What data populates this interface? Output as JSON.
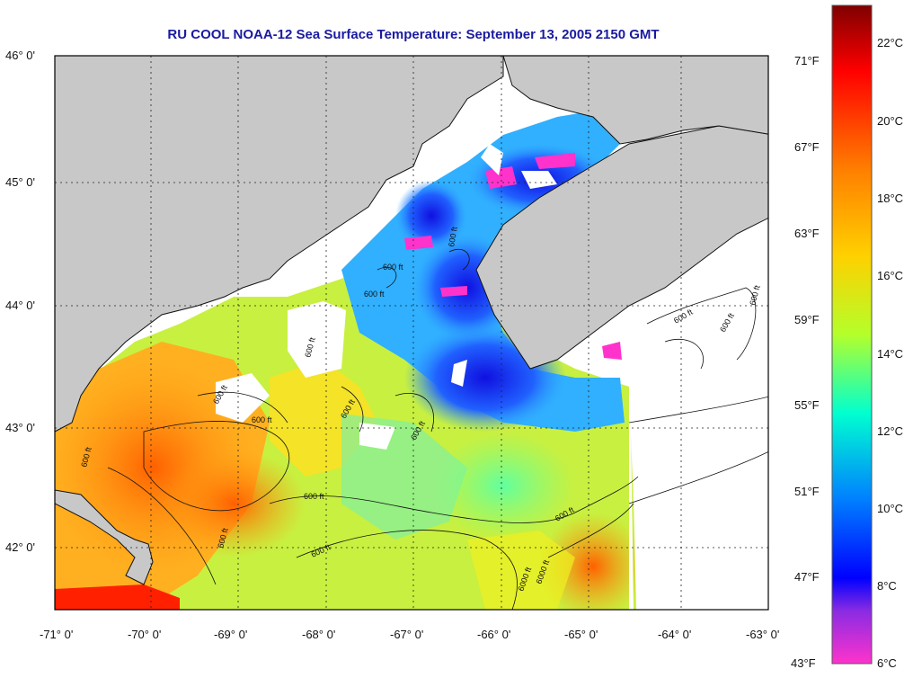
{
  "title": "RU COOL  NOAA-12  Sea Surface Temperature:  September 13, 2005 2150 GMT",
  "lat_labels": [
    "46° 0'",
    "45° 0'",
    "44° 0'",
    "43° 0'",
    "42° 0'"
  ],
  "lon_labels": [
    "-71° 0'",
    "-70° 0'",
    "-69° 0'",
    "-68° 0'",
    "-67° 0'",
    "-66° 0'",
    "-65° 0'",
    "-64° 0'",
    "-63° 0'"
  ],
  "fahrenheit_labels": [
    "71°F",
    "67°F",
    "63°F",
    "59°F",
    "55°F",
    "51°F",
    "47°F",
    "43°F"
  ],
  "celsius_labels": [
    "22°C",
    "20°C",
    "18°C",
    "16°C",
    "14°C",
    "12°C",
    "10°C",
    "8°C",
    "6°C"
  ],
  "contour_label": "600 ft",
  "contour_label_deep": "6000 ft",
  "colors": {
    "land": "#c8c8c8",
    "title": "#1a1aa0",
    "scale_top": "#800000",
    "scale_bottom": "#ff33cc"
  }
}
